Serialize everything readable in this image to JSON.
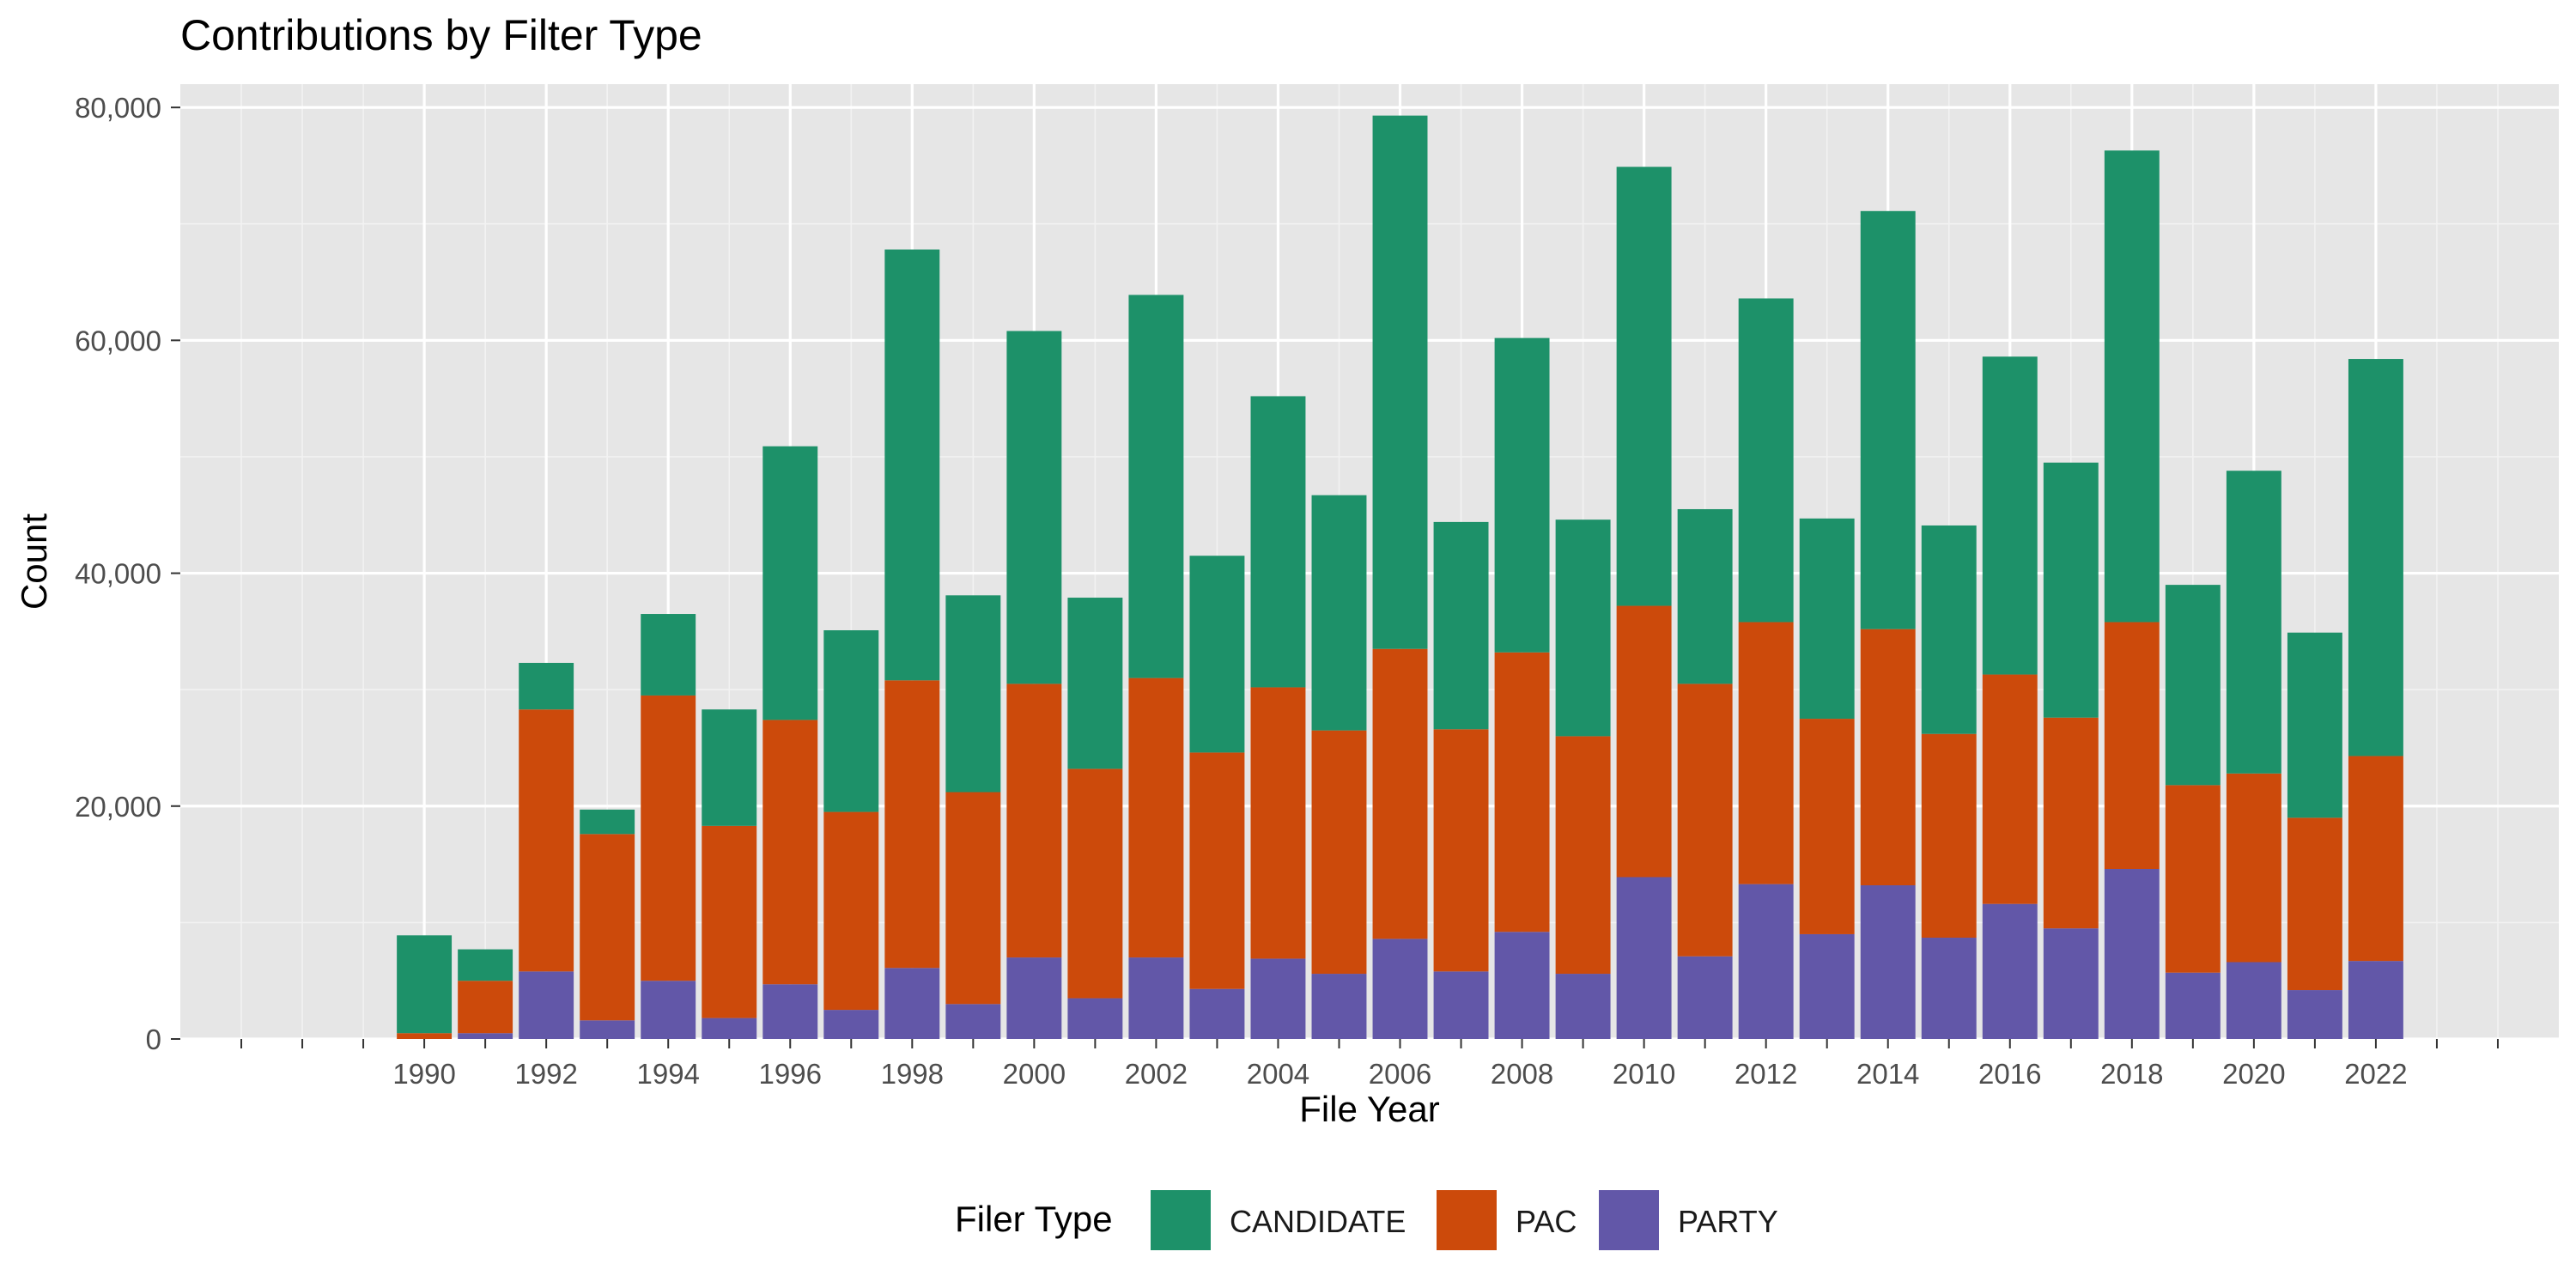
{
  "chart_data": {
    "type": "bar",
    "stacked": true,
    "title": "Contributions by Filter Type",
    "xlabel": "File Year",
    "ylabel": "Count",
    "ylim": [
      0,
      82000
    ],
    "xlim": [
      1986,
      2025
    ],
    "x_ticks": [
      "1990",
      "1992",
      "1994",
      "1996",
      "1998",
      "2000",
      "2002",
      "2004",
      "2006",
      "2008",
      "2010",
      "2012",
      "2014",
      "2016",
      "2018",
      "2020",
      "2022"
    ],
    "y_ticks": [
      0,
      20000,
      40000,
      60000,
      80000
    ],
    "y_tick_labels": [
      "0",
      "20,000",
      "40,000",
      "60,000",
      "80,000"
    ],
    "categories": [
      1990,
      1991,
      1992,
      1993,
      1994,
      1995,
      1996,
      1997,
      1998,
      1999,
      2000,
      2001,
      2002,
      2003,
      2004,
      2005,
      2006,
      2007,
      2008,
      2009,
      2010,
      2011,
      2012,
      2013,
      2014,
      2015,
      2016,
      2017,
      2018,
      2019,
      2020,
      2021,
      2022
    ],
    "series": [
      {
        "name": "PARTY",
        "color": "#6257a8",
        "values": [
          0,
          500,
          5800,
          1600,
          5000,
          1800,
          4700,
          2500,
          6100,
          3000,
          7000,
          3500,
          7000,
          4300,
          6900,
          5600,
          8600,
          5800,
          9200,
          5600,
          13900,
          7100,
          13300,
          9000,
          13200,
          8700,
          11600,
          9500,
          14600,
          5700,
          6600,
          4200,
          6700
        ]
      },
      {
        "name": "PAC",
        "color": "#cc4a0b",
        "values": [
          500,
          4500,
          22500,
          16000,
          24500,
          16500,
          22700,
          17000,
          24700,
          18200,
          23500,
          19700,
          24000,
          20300,
          23300,
          20900,
          24900,
          20800,
          24000,
          20400,
          23300,
          23400,
          22500,
          18500,
          22000,
          17500,
          19700,
          18100,
          21200,
          16100,
          16200,
          14800,
          17600
        ]
      },
      {
        "name": "CANDIDATE",
        "color": "#1d9169",
        "values": [
          8400,
          2700,
          4000,
          2100,
          7000,
          10000,
          23500,
          15600,
          37000,
          16900,
          30300,
          14700,
          32900,
          16900,
          25000,
          20200,
          45800,
          17800,
          27000,
          18600,
          37700,
          15000,
          27800,
          17200,
          35900,
          17900,
          27300,
          21900,
          40500,
          17200,
          26000,
          15900,
          34100
        ]
      }
    ],
    "legend": {
      "title": "Filer Type",
      "position": "bottom",
      "entries": [
        "CANDIDATE",
        "PAC",
        "PARTY"
      ],
      "colors": [
        "#1d9169",
        "#cc4a0b",
        "#6257a8"
      ]
    },
    "grid": true,
    "background": "#e6e6e6"
  }
}
